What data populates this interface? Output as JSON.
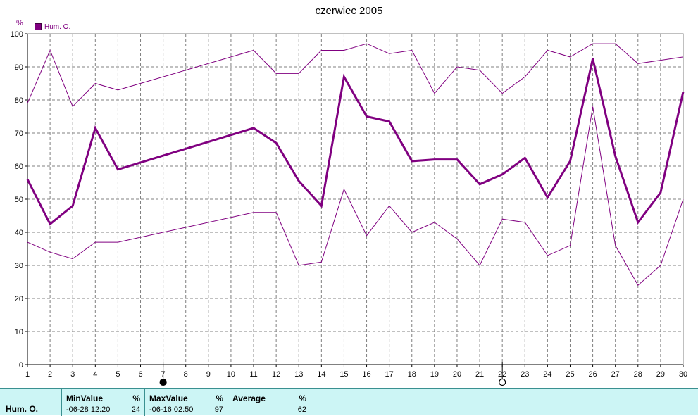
{
  "chart_data": {
    "type": "line",
    "title": "czerwiec 2005",
    "ylabel": "%",
    "ylim": [
      0,
      100
    ],
    "xlim": [
      1,
      30
    ],
    "yticks": [
      0,
      10,
      20,
      30,
      40,
      50,
      60,
      70,
      80,
      90,
      100
    ],
    "x": [
      1,
      2,
      3,
      4,
      5,
      6,
      7,
      8,
      9,
      10,
      11,
      12,
      13,
      14,
      15,
      16,
      17,
      18,
      19,
      20,
      21,
      22,
      23,
      24,
      25,
      26,
      27,
      28,
      29,
      30
    ],
    "legend": "top-left",
    "grid": true,
    "series": [
      {
        "name": "Hum. O.",
        "role": "average",
        "color": "#800080",
        "x": [
          1,
          2,
          3,
          4,
          5,
          11,
          12,
          13,
          14,
          15,
          16,
          17,
          18,
          19,
          20,
          21,
          22,
          23,
          24,
          25,
          26,
          27,
          28,
          29,
          30
        ],
        "values": [
          56,
          42.5,
          48,
          71.5,
          59,
          71.5,
          67,
          55.5,
          48,
          87,
          75,
          73.5,
          61.5,
          62,
          62,
          54.5,
          57.5,
          62.5,
          50.5,
          61.5,
          92.5,
          63,
          43,
          52,
          82.5
        ]
      },
      {
        "role": "max",
        "color": "#800080",
        "x": [
          1,
          2,
          3,
          4,
          5,
          11,
          12,
          13,
          14,
          15,
          16,
          17,
          18,
          19,
          20,
          21,
          22,
          23,
          24,
          25,
          26,
          27,
          28,
          29,
          30
        ],
        "values": [
          79,
          95,
          78,
          85,
          83,
          95,
          88,
          88,
          95,
          95,
          97,
          94,
          95,
          82,
          90,
          89,
          82,
          87,
          95,
          93,
          97,
          97,
          91,
          92,
          93
        ]
      },
      {
        "role": "min",
        "color": "#800080",
        "x": [
          1,
          2,
          3,
          4,
          5,
          11,
          12,
          13,
          14,
          15,
          16,
          17,
          18,
          19,
          20,
          21,
          22,
          23,
          24,
          25,
          26,
          27,
          28,
          29,
          30
        ],
        "values": [
          37,
          34,
          32,
          37,
          37,
          46,
          46,
          30,
          31,
          53,
          39,
          48,
          40,
          43,
          38,
          30,
          44,
          43,
          33,
          36,
          78,
          36,
          24,
          30,
          50
        ]
      }
    ],
    "markers": [
      {
        "x": 7,
        "symbol": "filled-circle"
      },
      {
        "x": 22,
        "symbol": "open-circle"
      }
    ]
  },
  "legend_label": "Hum. O.",
  "footer": {
    "row_label": "Hum. O.",
    "min_header": "MinValue",
    "min_unit": "%",
    "min_date": "-06-28  12:20",
    "min_value": "24",
    "max_header": "MaxValue",
    "max_unit": "%",
    "max_date": "-06-16  02:50",
    "max_value": "97",
    "avg_header": "Average",
    "avg_unit": "%",
    "avg_value": "62"
  }
}
